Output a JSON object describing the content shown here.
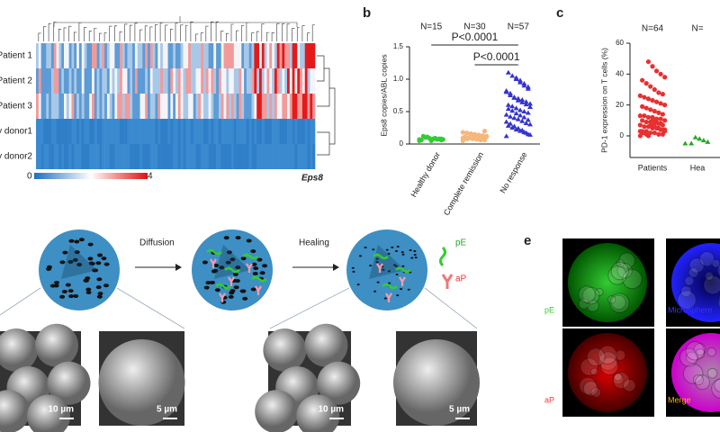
{
  "heatmap": {
    "row_labels": [
      "Patient 1",
      "Patient 2",
      "Patient 3",
      "y donor1",
      "y donor2"
    ],
    "colorbar_min": 0,
    "colorbar_max": 4,
    "gene": "Eps8"
  },
  "chart_data": [
    {
      "type": "strip",
      "panel": "b",
      "ylabel": "Eps8 copies/ABL copies",
      "categories": [
        "Healthy donor",
        "Complete remission",
        "No response"
      ],
      "counts": [
        "N=15",
        "N=30",
        "N=57"
      ],
      "annotations": [
        "P<0.0001",
        "P<0.0001"
      ],
      "ylim": [
        0,
        1.5
      ],
      "yticks": [
        0,
        0.5,
        {
          "value": 1,
          "label": "1.0"
        },
        1.5
      ],
      "series": [
        {
          "name": "Healthy donor",
          "color": "#33cc33",
          "marker": "circle",
          "values": [
            0.05,
            0.06,
            0.07,
            0.08,
            0.09,
            0.1,
            0.06,
            0.07,
            0.08,
            0.09,
            0.05,
            0.11,
            0.12,
            0.07,
            0.08
          ]
        },
        {
          "name": "Complete remission",
          "color": "#f5b77a",
          "marker": "circle",
          "values": [
            0.05,
            0.06,
            0.07,
            0.08,
            0.09,
            0.1,
            0.11,
            0.12,
            0.13,
            0.14,
            0.15,
            0.16,
            0.17,
            0.18,
            0.2,
            0.06,
            0.07,
            0.08,
            0.09,
            0.1,
            0.11,
            0.12,
            0.13,
            0.14,
            0.15,
            0.08,
            0.09,
            0.1,
            0.11,
            0.12
          ]
        },
        {
          "name": "No response",
          "color": "#3333cc",
          "marker": "triangle",
          "values": [
            0.12,
            0.15,
            0.18,
            0.2,
            0.22,
            0.25,
            0.28,
            0.3,
            0.32,
            0.35,
            0.38,
            0.4,
            0.42,
            0.45,
            0.48,
            0.5,
            0.52,
            0.55,
            0.58,
            0.6,
            0.62,
            0.65,
            0.68,
            0.7,
            0.72,
            0.75,
            0.8,
            0.85,
            0.9,
            0.95,
            1.0,
            1.05,
            1.1,
            0.14,
            0.17,
            0.21,
            0.24,
            0.27,
            0.31,
            0.34,
            0.37,
            0.41,
            0.44,
            0.47,
            0.51,
            0.54,
            0.57,
            0.61,
            0.64,
            0.67,
            0.71,
            0.78,
            0.82,
            0.88,
            0.93,
            0.98,
            1.02
          ]
        }
      ]
    },
    {
      "type": "strip",
      "panel": "c",
      "ylabel": "PD-1 expression on T cells (%)",
      "categories": [
        "Patients",
        "Hea"
      ],
      "counts": [
        "N=64",
        "N="
      ],
      "ylim": [
        -14,
        60
      ],
      "yticks": [
        0,
        20,
        40,
        60
      ],
      "series": [
        {
          "name": "Patients",
          "color": "#e83030",
          "marker": "circle",
          "values": [
            0,
            1,
            1,
            2,
            2,
            3,
            3,
            4,
            4,
            5,
            5,
            6,
            6,
            7,
            7,
            8,
            8,
            9,
            9,
            10,
            10,
            11,
            11,
            12,
            12,
            13,
            13,
            14,
            15,
            16,
            17,
            18,
            19,
            20,
            21,
            22,
            23,
            24,
            25,
            26,
            27,
            28,
            30,
            32,
            34,
            36,
            38,
            40,
            42,
            45,
            48,
            2,
            3,
            4,
            5,
            6,
            7,
            1,
            2,
            3,
            8,
            9,
            10,
            0
          ]
        },
        {
          "name": "Hea",
          "color": "#22aa22",
          "marker": "triangle",
          "values": [
            -5,
            -4,
            -3,
            -2,
            -1,
            -5
          ]
        }
      ]
    }
  ],
  "diagram": {
    "steps": [
      "Diffusion",
      "Healing"
    ],
    "legend": [
      "pE",
      "aP"
    ],
    "scale_bars": [
      "10 µm",
      "5 µm",
      "10 µm",
      "5 µm"
    ]
  },
  "panel_e": {
    "label": "e",
    "channels": [
      "pE",
      "Microsphere",
      "aP",
      "Merge"
    ]
  }
}
